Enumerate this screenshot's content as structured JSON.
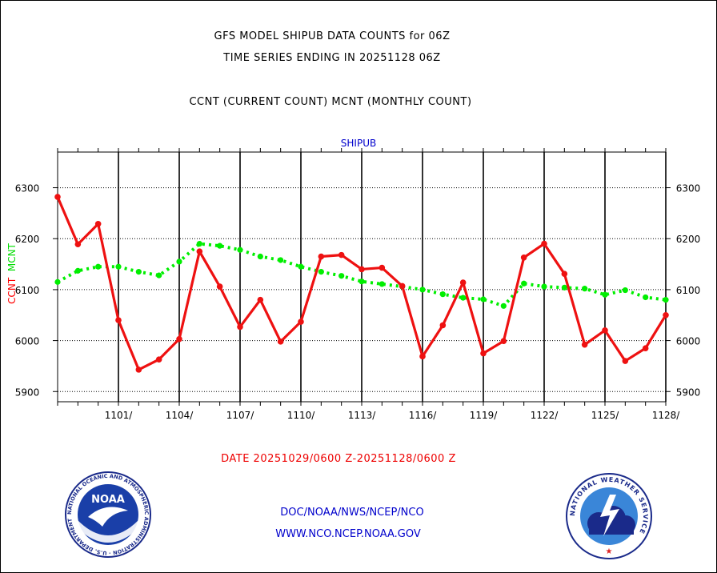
{
  "chart_data": {
    "type": "line",
    "title": "GFS MODEL SHIPUB DATA COUNTS for 06Z",
    "subtitle": "TIME SERIES ENDING IN 20251128 06Z",
    "legend_text": "CCNT (CURRENT COUNT) MCNT (MONTHLY COUNT)",
    "panel_label": "SHIPUB",
    "ylabel_ccnt": "CCNT",
    "ylabel_mcnt": "MCNT",
    "xlabel": "DATE 20251029/0600 Z-20251128/0600 Z",
    "ylim": [
      5880,
      6370
    ],
    "yticks": [
      5900,
      6000,
      6100,
      6200,
      6300
    ],
    "ytick_labels": [
      "5900",
      "6000",
      "6100",
      "6200",
      "6300"
    ],
    "xlim": [
      0,
      30
    ],
    "xtick_positions": [
      3,
      6,
      9,
      12,
      15,
      18,
      21,
      24,
      27,
      30
    ],
    "xtick_labels": [
      "1101/",
      "1104/",
      "1107/",
      "1110/",
      "1113/",
      "1116/",
      "1119/",
      "1122/",
      "1125/",
      "1128/"
    ],
    "series": [
      {
        "name": "CCNT",
        "color": "#ee1111",
        "style": "solid",
        "x": [
          0,
          1,
          2,
          3,
          4,
          5,
          6,
          7,
          8,
          9,
          10,
          11,
          12,
          13,
          14,
          15,
          16,
          17,
          18,
          19,
          20,
          21,
          22,
          23,
          24,
          25,
          26,
          27,
          28,
          29,
          30
        ],
        "values": [
          6282,
          6189,
          6229,
          6040,
          5943,
          5963,
          6003,
          6175,
          6106,
          6027,
          6080,
          5998,
          6037,
          6165,
          6168,
          6140,
          6143,
          6107,
          5969,
          6030,
          6114,
          5975,
          5999,
          6163,
          6190,
          6131,
          5992,
          6020,
          5960,
          5985,
          6050
        ]
      },
      {
        "name": "MCNT",
        "color": "#00ee00",
        "style": "dotted",
        "x": [
          0,
          1,
          2,
          3,
          4,
          5,
          6,
          7,
          8,
          9,
          10,
          11,
          12,
          13,
          14,
          15,
          16,
          17,
          18,
          19,
          20,
          21,
          22,
          23,
          24,
          25,
          26,
          27,
          28,
          29,
          30
        ],
        "values": [
          6115,
          6137,
          6145,
          6145,
          6135,
          6128,
          6155,
          6190,
          6186,
          6178,
          6165,
          6158,
          6145,
          6135,
          6127,
          6116,
          6111,
          6106,
          6100,
          6091,
          6084,
          6081,
          6068,
          6112,
          6106,
          6104,
          6102,
          6090,
          6099,
          6085,
          6080
        ]
      }
    ]
  },
  "footer": {
    "link1": "DOC/NOAA/NWS/NCEP/NCO",
    "link2": "WWW.NCO.NCEP.NOAA.GOV"
  },
  "logos": {
    "noaa_text": "NOAA",
    "noaa_ring_text": "NATIONAL OCEANIC AND ATMOSPHERIC ADMINISTRATION · U.S. DEPARTMENT OF COMMERCE",
    "nws_ring_text": "NATIONAL WEATHER SERVICE"
  },
  "colors": {
    "ccnt": "#ee1111",
    "mcnt": "#00ee00",
    "grid": "#000000",
    "link": "#0000cc"
  }
}
